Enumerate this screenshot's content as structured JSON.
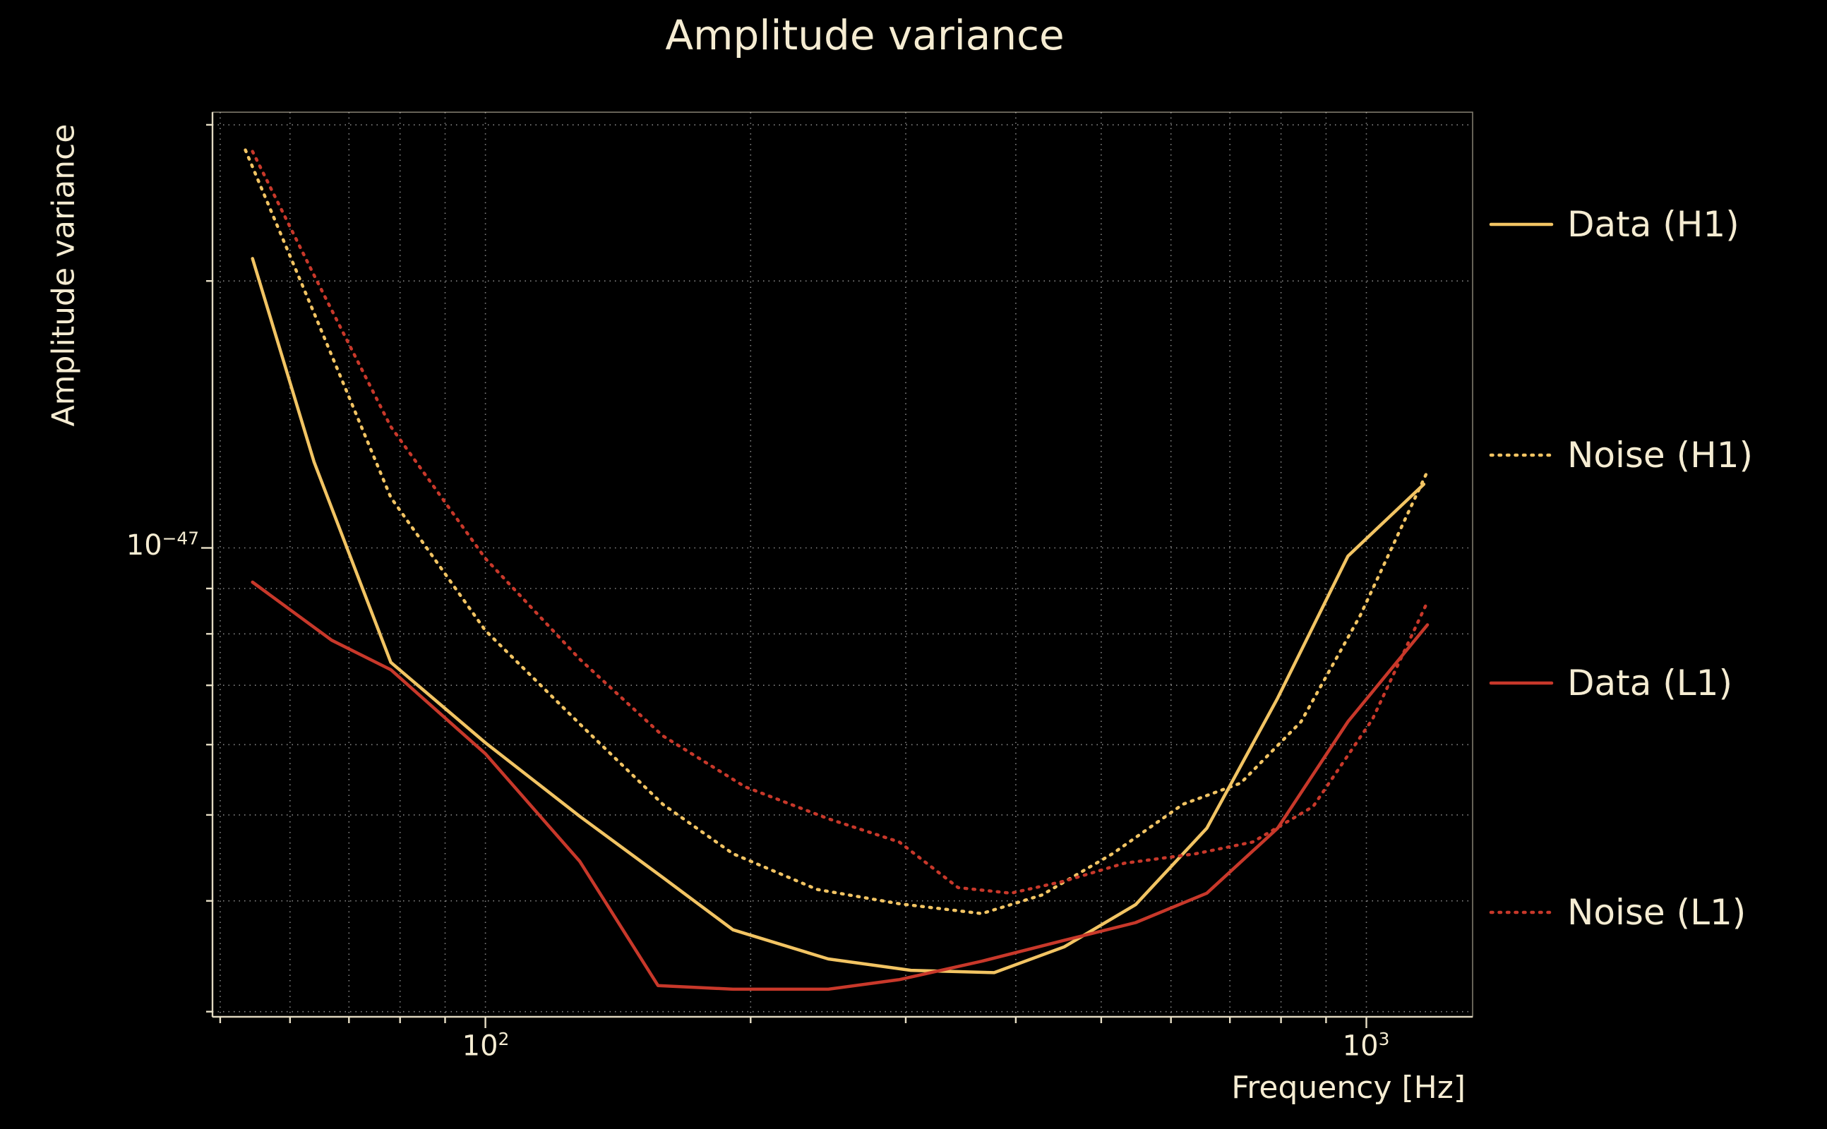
{
  "chart_data": {
    "type": "line",
    "title": "Amplitude variance",
    "xlabel": "Frequency [Hz]",
    "ylabel": "Amplitude variance",
    "xscale": "log",
    "yscale": "log",
    "xlim": [
      49,
      1320
    ],
    "ylim": [
      2.96e-48,
      3.1e-47
    ],
    "grid": true,
    "legend_position": "right",
    "background_color": "#000000",
    "text_color": "#f5ecd2",
    "grid_color": "#cfcfcf",
    "x_gridlines": [
      50,
      60,
      70,
      80,
      90,
      100,
      200,
      300,
      400,
      500,
      600,
      700,
      800,
      900,
      1000
    ],
    "y_gridlines": [
      3e-48,
      4e-48,
      5e-48,
      6e-48,
      7e-48,
      8e-48,
      9e-48,
      1e-47,
      2e-47,
      3e-47
    ],
    "x_major": [
      100,
      1000
    ],
    "y_major": [
      1e-47
    ],
    "x_tick_labels": [
      {
        "base": "10",
        "exp": "2"
      },
      {
        "base": "10",
        "exp": "3"
      }
    ],
    "y_tick_labels": [
      {
        "base": "10",
        "exp": "−47"
      }
    ],
    "series": [
      {
        "name": "Data (H1)",
        "color": "#f2c463",
        "linestyle": "solid",
        "x": [
          54.4,
          63.9,
          78.1,
          100,
          128,
          159,
          191,
          245,
          304,
          378,
          454,
          547,
          659,
          793,
          953,
          1162
        ],
        "y": [
          2.12e-47,
          1.25e-47,
          7.43e-48,
          6.03e-48,
          4.98e-48,
          4.25e-48,
          3.71e-48,
          3.44e-48,
          3.34e-48,
          3.32e-48,
          3.55e-48,
          3.96e-48,
          4.83e-48,
          6.77e-48,
          9.79e-48,
          1.18e-47
        ]
      },
      {
        "name": "Noise (H1)",
        "color": "#f2c463",
        "linestyle": "dotted",
        "x": [
          53.4,
          63.9,
          78.1,
          100,
          128,
          159,
          191,
          238,
          295,
          366,
          428,
          515,
          619,
          720,
          843,
          984,
          1173
        ],
        "y": [
          2.81e-47,
          1.84e-47,
          1.14e-47,
          8.07e-48,
          6.33e-48,
          5.14e-48,
          4.52e-48,
          4.12e-48,
          3.97e-48,
          3.87e-48,
          4.06e-48,
          4.52e-48,
          5.14e-48,
          5.43e-48,
          6.37e-48,
          8.39e-48,
          1.22e-47
        ]
      },
      {
        "name": "Data (L1)",
        "color": "#c8382a",
        "linestyle": "solid",
        "x": [
          54.4,
          66.9,
          78.1,
          100,
          128,
          157,
          191,
          245,
          295,
          366,
          454,
          547,
          659,
          793,
          953,
          1173
        ],
        "y": [
          9.15e-48,
          7.87e-48,
          7.29e-48,
          5.86e-48,
          4.43e-48,
          3.21e-48,
          3.18e-48,
          3.18e-48,
          3.26e-48,
          3.42e-48,
          3.61e-48,
          3.78e-48,
          4.08e-48,
          4.83e-48,
          6.37e-48,
          8.19e-48
        ]
      },
      {
        "name": "Noise (L1)",
        "color": "#c8382a",
        "linestyle": "dotted",
        "x": [
          54.4,
          63.9,
          78.1,
          100,
          128,
          159,
          197,
          245,
          295,
          344,
          395,
          454,
          531,
          640,
          743,
          870,
          1016,
          1167
        ],
        "y": [
          2.8e-47,
          2.03e-47,
          1.37e-47,
          9.73e-48,
          7.49e-48,
          6.14e-48,
          5.38e-48,
          4.95e-48,
          4.66e-48,
          4.14e-48,
          4.08e-48,
          4.21e-48,
          4.41e-48,
          4.52e-48,
          4.66e-48,
          5.11e-48,
          6.41e-48,
          8.6e-48
        ]
      }
    ]
  },
  "legend": {
    "items": [
      {
        "label": "Data (H1)",
        "color": "#f2c463",
        "style": "solid"
      },
      {
        "label": "Noise (H1)",
        "color": "#f2c463",
        "style": "dotted"
      },
      {
        "label": "Data (L1)",
        "color": "#c8382a",
        "style": "solid"
      },
      {
        "label": "Noise (L1)",
        "color": "#c8382a",
        "style": "dotted"
      }
    ]
  }
}
